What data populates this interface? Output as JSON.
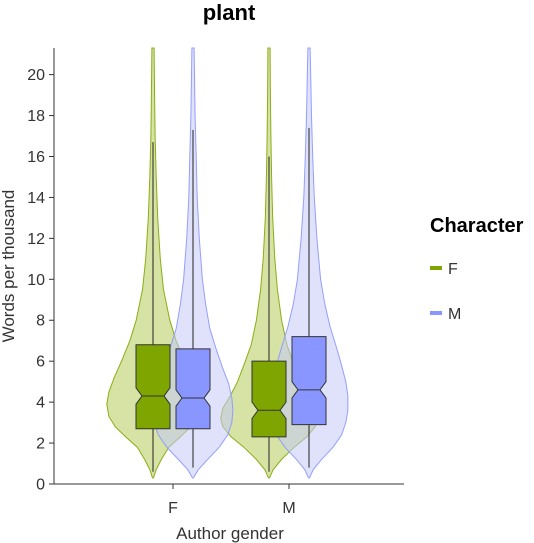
{
  "chart_data": {
    "type": "violin",
    "title": "plant",
    "xlabel": "Author gender",
    "ylabel": "Words per thousand",
    "categories": [
      "F",
      "M"
    ],
    "ylim": [
      0,
      21.3
    ],
    "yticks": [
      0,
      2,
      4,
      6,
      8,
      10,
      12,
      14,
      16,
      18,
      20
    ],
    "legend": {
      "title": "Character",
      "position": "right",
      "entries": [
        {
          "label": "F",
          "color": "#7fa600"
        },
        {
          "label": "M",
          "color": "#8a96ff"
        }
      ]
    },
    "series": [
      {
        "name": "F",
        "color": "#7fa600",
        "fill": "#b5cc5a",
        "groups": [
          {
            "category": "F",
            "whisker_low": 0.6,
            "q1": 2.7,
            "median": 4.3,
            "q3": 6.8,
            "whisker_high": 16.7,
            "notch_low": 3.9,
            "notch_high": 4.7,
            "ymin": 0.3,
            "ymax": 21.3,
            "density": [
              [
                0.3,
                0.005
              ],
              [
                0.7,
                0.03
              ],
              [
                1.2,
                0.08
              ],
              [
                1.8,
                0.15
              ],
              [
                2.3,
                0.26
              ],
              [
                2.8,
                0.36
              ],
              [
                3.3,
                0.42
              ],
              [
                3.9,
                0.44
              ],
              [
                4.5,
                0.42
              ],
              [
                5.2,
                0.37
              ],
              [
                6.0,
                0.3
              ],
              [
                7.0,
                0.22
              ],
              [
                8.0,
                0.16
              ],
              [
                9.5,
                0.1
              ],
              [
                11,
                0.07
              ],
              [
                13,
                0.045
              ],
              [
                15,
                0.03
              ],
              [
                17,
                0.02
              ],
              [
                19,
                0.015
              ],
              [
                21.3,
                0.01
              ]
            ]
          },
          {
            "category": "M",
            "whisker_low": 0.6,
            "q1": 2.3,
            "median": 3.6,
            "q3": 6.0,
            "whisker_high": 16.0,
            "notch_low": 3.2,
            "notch_high": 4.0,
            "ymin": 0.3,
            "ymax": 21.3,
            "density": [
              [
                0.3,
                0.005
              ],
              [
                0.7,
                0.04
              ],
              [
                1.2,
                0.12
              ],
              [
                1.8,
                0.24
              ],
              [
                2.3,
                0.36
              ],
              [
                2.8,
                0.44
              ],
              [
                3.2,
                0.46
              ],
              [
                3.7,
                0.44
              ],
              [
                4.3,
                0.37
              ],
              [
                5.0,
                0.3
              ],
              [
                5.8,
                0.24
              ],
              [
                6.8,
                0.17
              ],
              [
                8.0,
                0.12
              ],
              [
                9.5,
                0.08
              ],
              [
                11,
                0.055
              ],
              [
                13,
                0.035
              ],
              [
                15,
                0.025
              ],
              [
                17,
                0.018
              ],
              [
                19,
                0.013
              ],
              [
                21.3,
                0.01
              ]
            ]
          }
        ]
      },
      {
        "name": "M",
        "color": "#8a96ff",
        "fill": "#c4caf5",
        "groups": [
          {
            "category": "F",
            "whisker_low": 0.8,
            "q1": 2.7,
            "median": 4.2,
            "q3": 6.6,
            "whisker_high": 17.3,
            "notch_low": 3.8,
            "notch_high": 4.6,
            "ymin": 0.3,
            "ymax": 21.3,
            "density": [
              [
                0.3,
                0.005
              ],
              [
                0.7,
                0.05
              ],
              [
                1.2,
                0.14
              ],
              [
                1.8,
                0.25
              ],
              [
                2.4,
                0.33
              ],
              [
                3.0,
                0.37
              ],
              [
                3.6,
                0.38
              ],
              [
                4.2,
                0.37
              ],
              [
                4.9,
                0.34
              ],
              [
                5.7,
                0.28
              ],
              [
                6.6,
                0.22
              ],
              [
                7.6,
                0.16
              ],
              [
                8.8,
                0.12
              ],
              [
                10,
                0.09
              ],
              [
                12,
                0.06
              ],
              [
                14,
                0.04
              ],
              [
                16,
                0.03
              ],
              [
                18,
                0.02
              ],
              [
                20,
                0.014
              ],
              [
                21.3,
                0.01
              ]
            ]
          },
          {
            "category": "M",
            "whisker_low": 0.8,
            "q1": 2.9,
            "median": 4.6,
            "q3": 7.2,
            "whisker_high": 17.4,
            "notch_low": 4.2,
            "notch_high": 5.0,
            "ymin": 0.3,
            "ymax": 21.3,
            "density": [
              [
                0.3,
                0.005
              ],
              [
                0.7,
                0.04
              ],
              [
                1.2,
                0.12
              ],
              [
                1.8,
                0.23
              ],
              [
                2.4,
                0.31
              ],
              [
                3.0,
                0.35
              ],
              [
                3.6,
                0.37
              ],
              [
                4.3,
                0.37
              ],
              [
                5.0,
                0.35
              ],
              [
                5.8,
                0.31
              ],
              [
                6.7,
                0.26
              ],
              [
                7.7,
                0.2
              ],
              [
                8.8,
                0.15
              ],
              [
                10,
                0.11
              ],
              [
                12,
                0.075
              ],
              [
                14,
                0.05
              ],
              [
                16,
                0.035
              ],
              [
                18,
                0.024
              ],
              [
                20,
                0.016
              ],
              [
                21.3,
                0.01
              ]
            ]
          }
        ]
      }
    ]
  }
}
